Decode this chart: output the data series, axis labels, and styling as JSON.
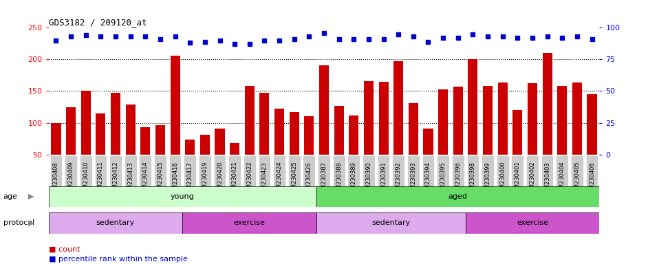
{
  "title": "GDS3182 / 209120_at",
  "categories": [
    "GSM230408",
    "GSM230409",
    "GSM230410",
    "GSM230411",
    "GSM230412",
    "GSM230413",
    "GSM230414",
    "GSM230415",
    "GSM230416",
    "GSM230417",
    "GSM230419",
    "GSM230420",
    "GSM230421",
    "GSM230422",
    "GSM230423",
    "GSM230424",
    "GSM230425",
    "GSM230426",
    "GSM230387",
    "GSM230388",
    "GSM230389",
    "GSM230390",
    "GSM230391",
    "GSM230392",
    "GSM230393",
    "GSM230394",
    "GSM230395",
    "GSM230396",
    "GSM230398",
    "GSM230399",
    "GSM230400",
    "GSM230401",
    "GSM230402",
    "GSM230403",
    "GSM230404",
    "GSM230405",
    "GSM230406"
  ],
  "bar_values": [
    100,
    125,
    150,
    115,
    147,
    129,
    93,
    96,
    206,
    74,
    81,
    91,
    68,
    158,
    147,
    122,
    117,
    110,
    191,
    127,
    111,
    166,
    165,
    197,
    131,
    91,
    153,
    157,
    200,
    158,
    164,
    120,
    162,
    210,
    158,
    164,
    145
  ],
  "percentile_values": [
    90,
    93,
    94,
    93,
    93,
    93,
    93,
    91,
    93,
    88,
    89,
    90,
    87,
    87,
    90,
    90,
    91,
    93,
    96,
    91,
    91,
    91,
    91,
    95,
    93,
    89,
    92,
    92,
    95,
    93,
    93,
    92,
    92,
    93,
    92,
    93,
    91
  ],
  "bar_color": "#cc0000",
  "dot_color": "#0000cc",
  "left_ylim": [
    50,
    250
  ],
  "left_yticks": [
    50,
    100,
    150,
    200,
    250
  ],
  "right_ylim": [
    0,
    100
  ],
  "right_yticks": [
    0,
    25,
    50,
    75,
    100
  ],
  "hlines": [
    100,
    150,
    200
  ],
  "groups_age": [
    {
      "label": "young",
      "start": 0,
      "end": 18,
      "color": "#ccffcc"
    },
    {
      "label": "aged",
      "start": 18,
      "end": 37,
      "color": "#66dd66"
    }
  ],
  "groups_protocol": [
    {
      "label": "sedentary",
      "start": 0,
      "end": 9,
      "color": "#ddaaee"
    },
    {
      "label": "exercise",
      "start": 9,
      "end": 18,
      "color": "#cc55cc"
    },
    {
      "label": "sedentary",
      "start": 18,
      "end": 28,
      "color": "#ddaaee"
    },
    {
      "label": "exercise",
      "start": 28,
      "end": 37,
      "color": "#cc55cc"
    }
  ],
  "background_color": "#ffffff",
  "tick_box_color": "#cccccc",
  "age_label_color": "#888888",
  "protocol_label_color": "#888888"
}
